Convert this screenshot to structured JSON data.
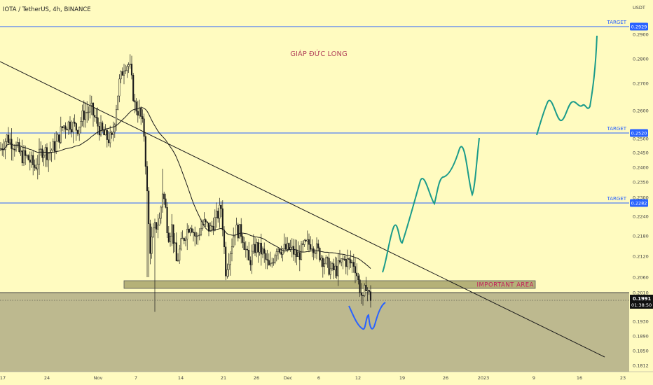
{
  "header": {
    "symbol": "IOTA / TetherUS, 4h, BINANCE",
    "currency": "USDT"
  },
  "chart_data": {
    "type": "candlestick",
    "title": "IOTA / TetherUS, 4h, BINANCE",
    "watermark_author": "GIÁP ĐỨC LONG",
    "y_unit": "USDT",
    "price_axis_ticks": [
      "0.2900",
      "0.2800",
      "0.2700",
      "0.2600",
      "0.2500",
      "0.2450",
      "0.2400",
      "0.2350",
      "0.2300",
      "0.2240",
      "0.2180",
      "0.2120",
      "0.2060",
      "0.2010",
      "0.1930",
      "0.1890",
      "0.1850",
      "0.1812"
    ],
    "time_axis_ticks": [
      "17",
      "24",
      "Nov",
      "7",
      "14",
      "21",
      "26",
      "Dec",
      "6",
      "12",
      "19",
      "26",
      "2023",
      "9",
      "16",
      "23"
    ],
    "targets": [
      {
        "label": "TARGET",
        "price": "0.2929"
      },
      {
        "label": "TARGET",
        "price": "0.2520"
      },
      {
        "label": "TARGET",
        "price": "0.2282"
      }
    ],
    "support_zone_label": "IMPORTANT AREA",
    "current_price": {
      "price": "0.1991",
      "countdown": "01:38:50"
    },
    "colors": {
      "background": "#fffbc0",
      "candle": "#1a1a1a",
      "target_line": "#2962ff",
      "target_label_bg": "#2962ff",
      "zone_fill": "#b5b178",
      "lower_zone_fill": "#bdb98f",
      "zone_label": "#c2185b",
      "projection_green": "#1a9b8a",
      "projection_blue": "#2962ff",
      "trendline": "#1a1a1a",
      "ma": "#1a1a1a",
      "author": "#b2435a"
    },
    "ohlc_anchors": [
      [
        0,
        0.246
      ],
      [
        10,
        0.2505
      ],
      [
        20,
        0.248
      ],
      [
        30,
        0.244
      ],
      [
        40,
        0.243
      ],
      [
        50,
        0.24
      ],
      [
        60,
        0.246
      ],
      [
        70,
        0.245
      ],
      [
        80,
        0.248
      ],
      [
        90,
        0.2545
      ],
      [
        100,
        0.2555
      ],
      [
        110,
        0.2535
      ],
      [
        120,
        0.259
      ],
      [
        130,
        0.2605
      ],
      [
        140,
        0.2545
      ],
      [
        150,
        0.2505
      ],
      [
        160,
        0.2495
      ],
      [
        170,
        0.27
      ],
      [
        178,
        0.278
      ],
      [
        185,
        0.2775
      ],
      [
        192,
        0.262
      ],
      [
        200,
        0.259
      ],
      [
        206,
        0.251
      ],
      [
        211,
        0.226
      ],
      [
        214,
        0.214
      ],
      [
        220,
        0.22
      ],
      [
        228,
        0.223
      ],
      [
        232,
        0.232
      ],
      [
        236,
        0.227
      ],
      [
        240,
        0.218
      ],
      [
        245,
        0.221
      ],
      [
        252,
        0.21
      ],
      [
        258,
        0.215
      ],
      [
        265,
        0.219
      ],
      [
        272,
        0.222
      ],
      [
        280,
        0.217
      ],
      [
        290,
        0.222
      ],
      [
        300,
        0.22
      ],
      [
        310,
        0.224
      ],
      [
        316,
        0.227
      ],
      [
        322,
        0.208
      ],
      [
        328,
        0.213
      ],
      [
        335,
        0.22
      ],
      [
        345,
        0.219
      ],
      [
        355,
        0.21
      ],
      [
        365,
        0.215
      ],
      [
        375,
        0.213
      ],
      [
        385,
        0.208
      ],
      [
        395,
        0.215
      ],
      [
        405,
        0.214
      ],
      [
        415,
        0.214
      ],
      [
        425,
        0.212
      ],
      [
        435,
        0.215
      ],
      [
        445,
        0.216
      ],
      [
        455,
        0.213
      ],
      [
        465,
        0.21
      ],
      [
        472,
        0.208
      ],
      [
        480,
        0.208
      ],
      [
        490,
        0.211
      ],
      [
        500,
        0.21
      ],
      [
        506,
        0.21
      ],
      [
        512,
        0.204
      ],
      [
        518,
        0.198
      ],
      [
        522,
        0.204
      ],
      [
        527,
        0.2
      ],
      [
        530,
        0.1991
      ]
    ]
  }
}
